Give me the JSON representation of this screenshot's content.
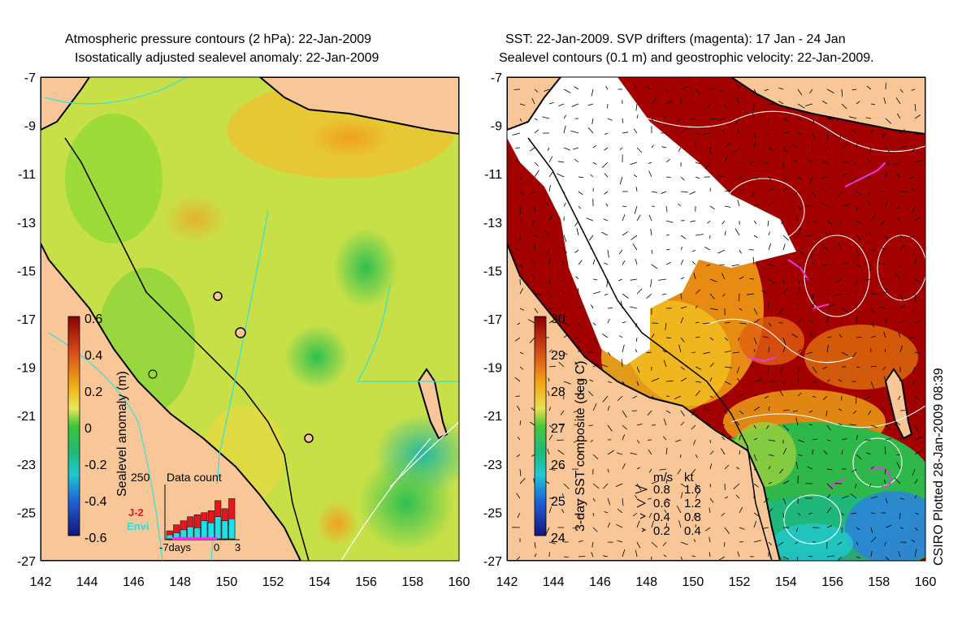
{
  "left_panel": {
    "title_line1": "Atmospheric pressure contours (2 hPa): 22-Jan-2009",
    "title_line2": "Isostatically adjusted sealevel anomaly: 22-Jan-2009",
    "colorbar_label": "Sealevel anomaly (m)",
    "colorbar_ticks": [
      "0.6",
      "0.4",
      "0.2",
      "0",
      "-0.2",
      "-0.4",
      "-0.6"
    ],
    "inset": {
      "title": "Data count",
      "y_max_label": "250",
      "x_labels": [
        "-7days",
        "0",
        "3"
      ],
      "legend": [
        {
          "label": "J-2",
          "color": "#e8141e"
        },
        {
          "label": "Envi",
          "color": "#1fe0e8"
        }
      ],
      "bars_j2": [
        40,
        70,
        90,
        110,
        120,
        130,
        140,
        190,
        150,
        200
      ],
      "bars_envi": [
        20,
        30,
        45,
        60,
        55,
        90,
        80,
        110,
        90,
        100
      ]
    }
  },
  "right_panel": {
    "title_line1": "SST: 22-Jan-2009. SVP drifters (magenta): 17 Jan - 24 Jan",
    "title_line2": "Sealevel contours (0.1 m) and geostrophic velocity: 22-Jan-2009.",
    "colorbar_label": "3-day SST composite (deg C)",
    "colorbar_ticks": [
      "30",
      "29",
      "28",
      "27",
      "26",
      "25",
      "24"
    ],
    "velocity_legend": {
      "header_ms": "m/s",
      "header_kt": "kt",
      "rows": [
        {
          "ms": "0.8",
          "kt": "1.6"
        },
        {
          "ms": "0.6",
          "kt": "1.2"
        },
        {
          "ms": "0.4",
          "kt": "0.8"
        },
        {
          "ms": "0.2",
          "kt": "0.4"
        }
      ]
    },
    "side_credit": "CSIRO Plotted 28-Jan-2009 08:39"
  },
  "axes": {
    "y_labels": [
      "-7",
      "-9",
      "-11",
      "-13",
      "-15",
      "-17",
      "-19",
      "-21",
      "-23",
      "-25",
      "-27"
    ],
    "x_labels": [
      "142",
      "144",
      "146",
      "148",
      "150",
      "152",
      "154",
      "156",
      "158",
      "160"
    ]
  },
  "colors": {
    "land": "#f9c797",
    "ocean_yellow": "#e8e85a",
    "ocean_green": "#6cd43c",
    "sst_red": "#a30000",
    "sst_orange": "#f09a14",
    "sst_green": "#2fb84a",
    "sst_blue": "#2c84d8",
    "drifter": "#e23ce0",
    "contour_cyan": "#30e0e0"
  }
}
